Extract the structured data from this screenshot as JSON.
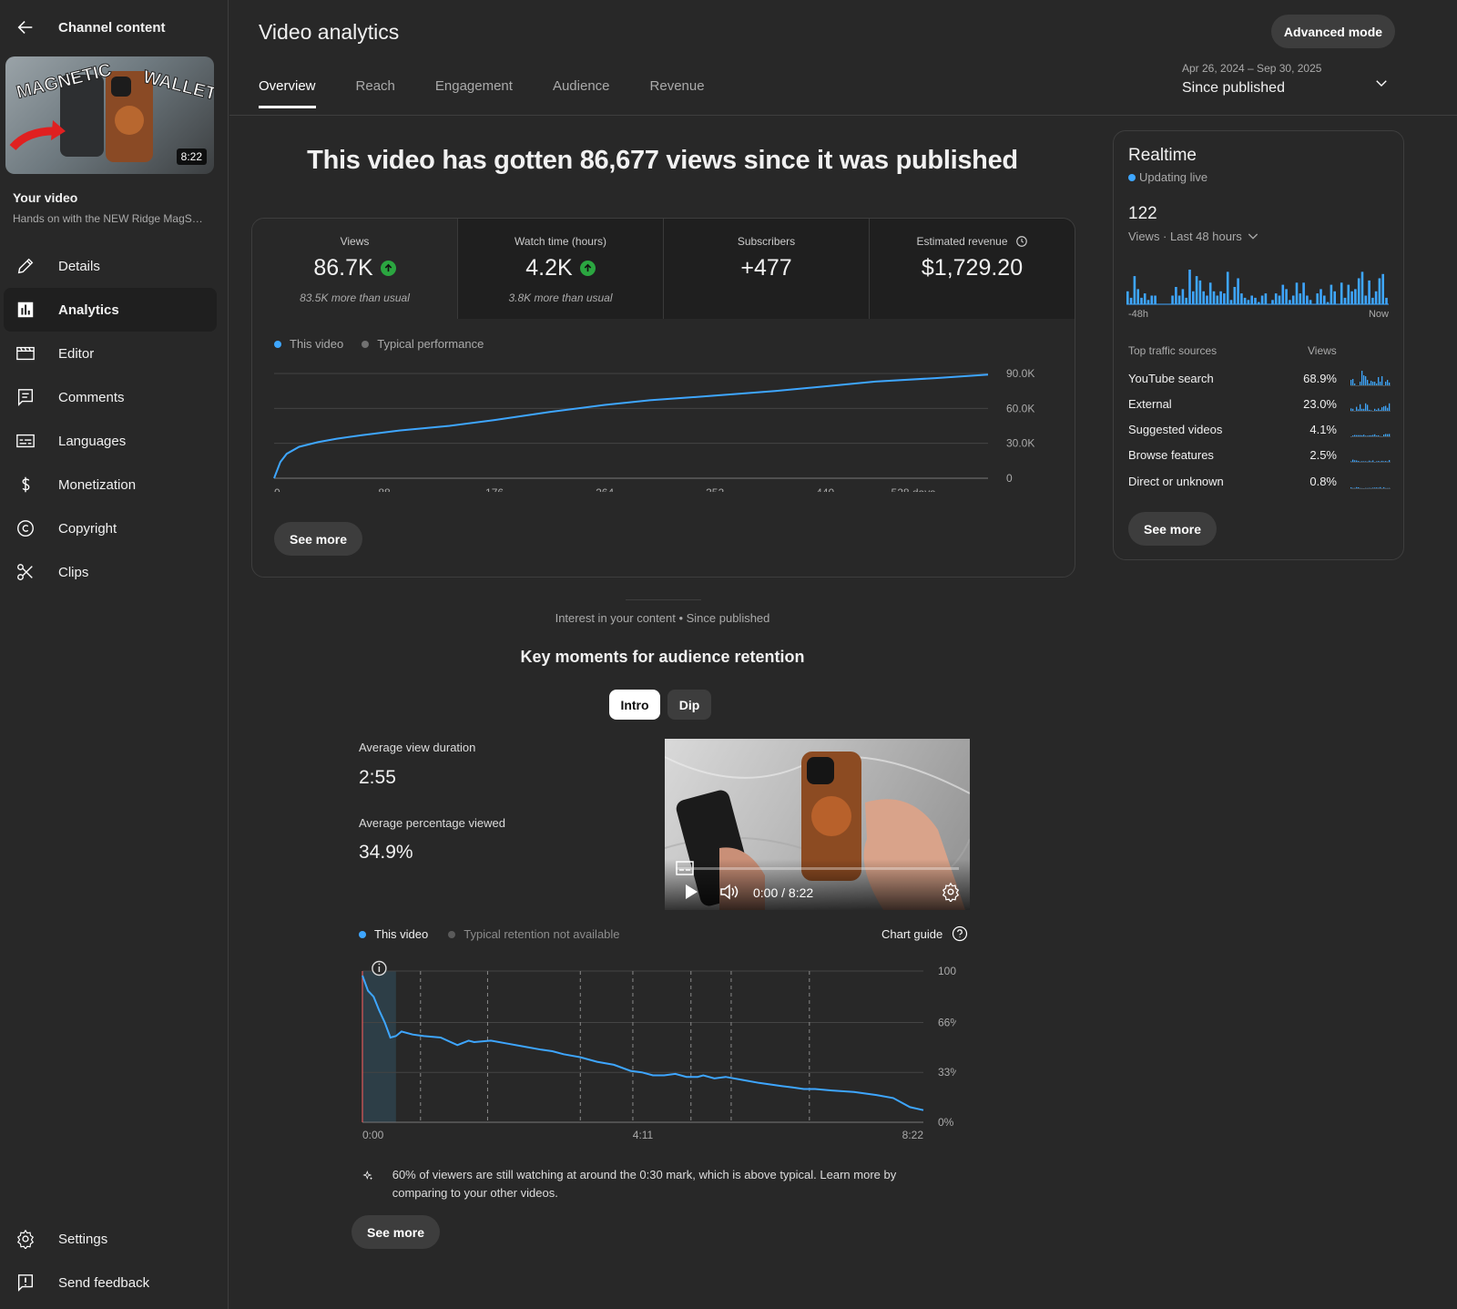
{
  "sidebar": {
    "title": "Channel content",
    "thumbnail_duration": "8:22",
    "thumbnail_text": [
      "MAGNETIC",
      "WALLET"
    ],
    "your_video_label": "Your video",
    "video_title": "Hands on with the NEW Ridge MagSafe Wallet",
    "nav": [
      {
        "label": "Details",
        "icon": "pencil-icon"
      },
      {
        "label": "Analytics",
        "icon": "analytics-icon",
        "active": true
      },
      {
        "label": "Editor",
        "icon": "editor-icon"
      },
      {
        "label": "Comments",
        "icon": "comments-icon"
      },
      {
        "label": "Languages",
        "icon": "languages-icon"
      },
      {
        "label": "Monetization",
        "icon": "dollar-icon"
      },
      {
        "label": "Copyright",
        "icon": "copyright-icon"
      },
      {
        "label": "Clips",
        "icon": "scissors-icon"
      }
    ],
    "bottom": [
      {
        "label": "Settings",
        "icon": "gear-icon"
      },
      {
        "label": "Send feedback",
        "icon": "feedback-icon"
      }
    ]
  },
  "header": {
    "title": "Video analytics",
    "advanced_mode": "Advanced mode",
    "tabs": [
      "Overview",
      "Reach",
      "Engagement",
      "Audience",
      "Revenue"
    ],
    "active_tab": "Overview",
    "date_range": "Apr 26, 2024 – Sep 30, 2025",
    "date_label": "Since published"
  },
  "headline": "This video has gotten 86,677 views since it was published",
  "metrics": [
    {
      "label": "Views",
      "value": "86.7K",
      "sub": "83.5K more than usual",
      "trend": "up"
    },
    {
      "label": "Watch time (hours)",
      "value": "4.2K",
      "sub": "3.8K more than usual",
      "trend": "up"
    },
    {
      "label": "Subscribers",
      "value": "+477",
      "sub": ""
    },
    {
      "label": "Estimated revenue",
      "value": "$1,729.20",
      "sub": ""
    }
  ],
  "overview_chart": {
    "legend": [
      "This video",
      "Typical performance"
    ],
    "see_more": "See more"
  },
  "realtime": {
    "title": "Realtime",
    "live": "Updating live",
    "count": "122",
    "period": "Views · Last 48 hours",
    "axis_start": "-48h",
    "axis_end": "Now",
    "sources_header": "Top traffic sources",
    "views_header": "Views",
    "sources": [
      {
        "name": "YouTube search",
        "pct": "68.9%"
      },
      {
        "name": "External",
        "pct": "23.0%"
      },
      {
        "name": "Suggested videos",
        "pct": "4.1%"
      },
      {
        "name": "Browse features",
        "pct": "2.5%"
      },
      {
        "name": "Direct or unknown",
        "pct": "0.8%"
      }
    ],
    "see_more": "See more",
    "bars": [
      6,
      3,
      13,
      7,
      3,
      5,
      2,
      4,
      4,
      0,
      0,
      0,
      0,
      4,
      8,
      4,
      7,
      3,
      16,
      6,
      13,
      11,
      6,
      4,
      10,
      6,
      4,
      6,
      5,
      15,
      2,
      8,
      12,
      5,
      3,
      2,
      4,
      3,
      1,
      4,
      5,
      0,
      2,
      5,
      4,
      9,
      7,
      2,
      4,
      10,
      5,
      10,
      4,
      2,
      0,
      5,
      7,
      4,
      1,
      9,
      6,
      0,
      10,
      3,
      9,
      6,
      7,
      12,
      15,
      4,
      11,
      3,
      6,
      12,
      14,
      3
    ]
  },
  "retention": {
    "interest": "Interest in your content • Since published",
    "title": "Key moments for audience retention",
    "toggles": [
      "Intro",
      "Dip"
    ],
    "active_toggle": "Intro",
    "avg_duration_label": "Average view duration",
    "avg_duration": "2:55",
    "avg_pct_label": "Average percentage viewed",
    "avg_pct": "34.9%",
    "player_time": "0:00 / 8:22",
    "legend_this": "This video",
    "legend_typical": "Typical retention not available",
    "chart_guide": "Chart guide",
    "insight": "60% of viewers are still watching at around the 0:30 mark, which is above typical. Learn more by comparing to your other videos.",
    "see_more": "See more"
  },
  "chart_data": [
    {
      "type": "line",
      "title": "Views",
      "x_label_unit": "days",
      "xlim": [
        0,
        570
      ],
      "ylim": [
        0,
        90000
      ],
      "x_ticks": [
        "0",
        "88",
        "176",
        "264",
        "352",
        "440",
        "528 days"
      ],
      "y_ticks": [
        "90.0K",
        "60.0K",
        "30.0K",
        "0"
      ],
      "series": [
        {
          "name": "This video",
          "x": [
            0,
            5,
            10,
            20,
            35,
            50,
            70,
            100,
            140,
            176,
            220,
            264,
            300,
            352,
            400,
            440,
            480,
            528,
            570
          ],
          "y": [
            0,
            14000,
            21000,
            27000,
            31000,
            34000,
            37000,
            41000,
            45000,
            50000,
            57000,
            63000,
            67000,
            71000,
            75000,
            79000,
            83000,
            86000,
            89000
          ]
        }
      ]
    },
    {
      "type": "line",
      "title": "Audience retention",
      "x_ticks": [
        "0:00",
        "4:11",
        "8:22"
      ],
      "y_ticks": [
        "100%",
        "66%",
        "33%",
        "0%"
      ],
      "xlim": [
        0,
        502
      ],
      "ylim": [
        0,
        100
      ],
      "series": [
        {
          "name": "This video",
          "x": [
            0,
            5,
            10,
            15,
            20,
            25,
            30,
            35,
            45,
            55,
            70,
            85,
            95,
            100,
            115,
            130,
            145,
            160,
            170,
            180,
            195,
            210,
            225,
            240,
            250,
            260,
            270,
            280,
            290,
            300,
            305,
            315,
            325,
            340,
            355,
            365,
            375,
            385,
            395,
            405,
            420,
            440,
            460,
            475,
            490,
            502
          ],
          "y": [
            97,
            87,
            83,
            74,
            66,
            56,
            57,
            60,
            58,
            57,
            56,
            51,
            54,
            53,
            54,
            52,
            50,
            48,
            47,
            45,
            43,
            40,
            38,
            34,
            33,
            31,
            31,
            32,
            30,
            30,
            31,
            29,
            30,
            28,
            26,
            25,
            24,
            23,
            22,
            22,
            21,
            20,
            18,
            16,
            10,
            8
          ]
        }
      ]
    }
  ]
}
